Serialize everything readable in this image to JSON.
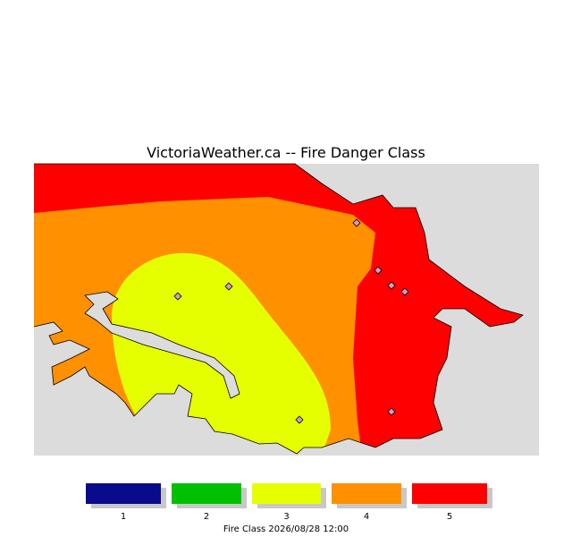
{
  "title": "VictoriaWeather.ca -- Fire Danger Class",
  "legend": {
    "items": [
      {
        "label": "1",
        "color": "#0a0a8c"
      },
      {
        "label": "2",
        "color": "#00c000"
      },
      {
        "label": "3",
        "color": "#e6ff00"
      },
      {
        "label": "4",
        "color": "#ff9000"
      },
      {
        "label": "5",
        "color": "#ff0000"
      }
    ],
    "caption": "Fire Class  2026/08/28 12:00"
  }
}
